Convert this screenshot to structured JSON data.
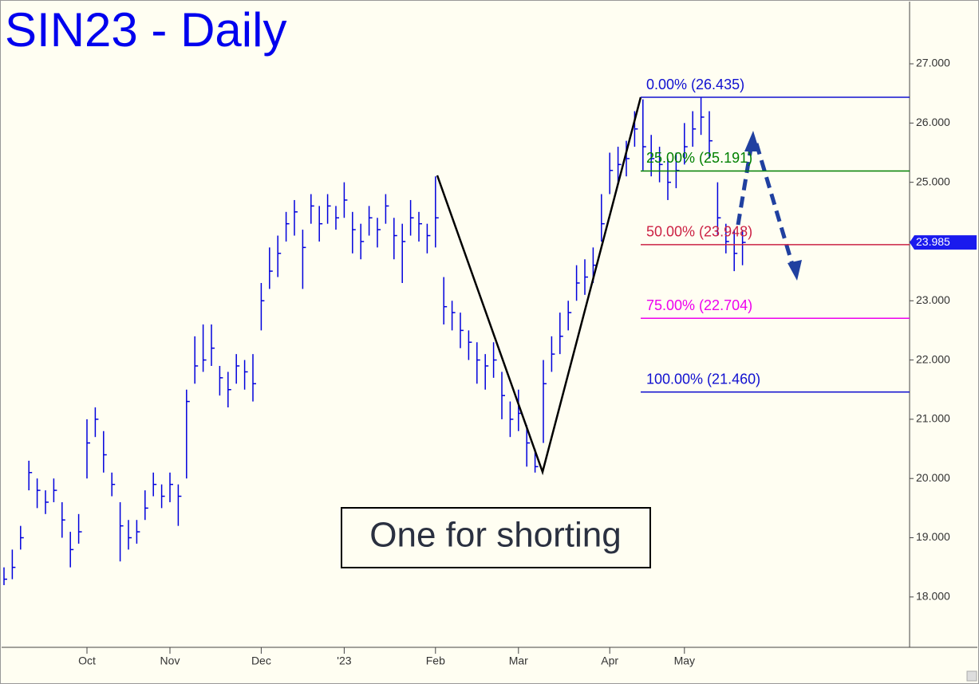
{
  "chart_data": {
    "type": "ohlc",
    "title": "SIN23 - Daily",
    "annotation": "One for shorting",
    "categories": [
      null,
      null,
      null,
      null,
      null,
      null,
      null,
      null,
      null,
      null,
      "Oct",
      null,
      null,
      null,
      null,
      null,
      null,
      null,
      null,
      null,
      "Nov",
      null,
      null,
      null,
      null,
      null,
      null,
      null,
      null,
      null,
      null,
      "Dec",
      null,
      null,
      null,
      null,
      null,
      null,
      null,
      null,
      null,
      "'23",
      null,
      null,
      null,
      null,
      null,
      null,
      null,
      null,
      null,
      null,
      "Feb",
      null,
      null,
      null,
      null,
      null,
      null,
      null,
      null,
      null,
      "Mar",
      null,
      null,
      null,
      null,
      null,
      null,
      null,
      null,
      null,
      null,
      "Apr",
      null,
      null,
      null,
      null,
      null,
      null,
      null,
      null,
      "May",
      null,
      null,
      null,
      null,
      null,
      null,
      null
    ],
    "high": [
      18.5,
      18.8,
      19.2,
      20.3,
      20.0,
      19.8,
      20.0,
      19.6,
      19.1,
      19.4,
      21.0,
      21.2,
      20.8,
      20.1,
      19.6,
      19.3,
      19.3,
      19.8,
      20.1,
      19.9,
      20.1,
      19.9,
      21.5,
      22.4,
      22.6,
      22.6,
      21.9,
      21.8,
      22.1,
      22.0,
      22.1,
      23.3,
      23.9,
      24.1,
      24.5,
      24.7,
      24.2,
      24.8,
      24.6,
      24.8,
      24.6,
      25.0,
      24.5,
      24.3,
      24.6,
      24.4,
      24.8,
      24.4,
      24.3,
      24.7,
      24.5,
      24.3,
      25.1,
      23.4,
      23.0,
      22.8,
      22.5,
      22.3,
      22.1,
      22.3,
      21.8,
      21.3,
      21.5,
      20.9,
      20.5,
      22.0,
      22.4,
      22.8,
      23.0,
      23.6,
      23.7,
      23.9,
      24.8,
      25.5,
      25.6,
      25.7,
      26.2,
      26.4,
      25.8,
      25.6,
      25.4,
      25.5,
      26.0,
      26.2,
      26.44,
      26.2,
      25.0,
      24.3,
      24.2,
      24.2
    ],
    "low": [
      18.2,
      18.3,
      18.8,
      19.8,
      19.5,
      19.4,
      19.6,
      19.0,
      18.5,
      18.9,
      20.0,
      20.7,
      20.1,
      19.7,
      18.6,
      18.8,
      18.9,
      19.3,
      19.7,
      19.5,
      19.6,
      19.2,
      20.0,
      21.6,
      21.8,
      21.9,
      21.4,
      21.2,
      21.6,
      21.5,
      21.3,
      22.5,
      23.2,
      23.4,
      24.0,
      24.1,
      23.2,
      24.3,
      24.0,
      24.3,
      24.2,
      24.4,
      23.8,
      23.7,
      24.1,
      23.9,
      24.3,
      23.7,
      23.3,
      24.1,
      24.0,
      23.8,
      23.9,
      22.6,
      22.5,
      22.2,
      22.0,
      21.6,
      21.5,
      21.7,
      21.0,
      20.7,
      20.8,
      20.2,
      20.1,
      20.6,
      21.8,
      22.1,
      22.5,
      23.0,
      23.1,
      23.3,
      24.0,
      24.8,
      25.0,
      25.1,
      25.6,
      25.2,
      25.1,
      25.0,
      24.7,
      24.9,
      25.3,
      25.6,
      25.8,
      25.4,
      24.1,
      23.8,
      23.5,
      23.6
    ],
    "close": [
      18.3,
      18.5,
      19.0,
      20.1,
      19.8,
      19.6,
      19.8,
      19.3,
      18.8,
      19.1,
      20.6,
      21.0,
      20.4,
      19.9,
      19.2,
      19.0,
      19.1,
      19.5,
      19.9,
      19.7,
      19.9,
      19.7,
      21.3,
      21.9,
      22.0,
      22.2,
      21.7,
      21.5,
      21.9,
      21.8,
      21.6,
      23.0,
      23.5,
      23.8,
      24.3,
      24.5,
      23.9,
      24.6,
      24.3,
      24.6,
      24.4,
      24.7,
      24.2,
      24.0,
      24.4,
      24.2,
      24.6,
      24.1,
      24.0,
      24.4,
      24.3,
      24.1,
      24.4,
      22.9,
      22.8,
      22.5,
      22.3,
      22.0,
      21.9,
      22.0,
      21.4,
      21.0,
      21.1,
      20.6,
      20.2,
      21.6,
      22.1,
      22.4,
      22.8,
      23.3,
      23.4,
      23.6,
      24.3,
      25.2,
      25.3,
      25.4,
      25.9,
      25.6,
      25.4,
      25.3,
      25.0,
      25.2,
      25.6,
      25.9,
      26.1,
      25.7,
      24.4,
      24.0,
      23.8,
      23.985
    ],
    "color": "#0000dd",
    "last": 23.985,
    "levels": [
      {
        "label": "0.00% (26.435)",
        "value": 26.435,
        "color": "#1010d0"
      },
      {
        "label": "25.00% (25.191)",
        "value": 25.191,
        "color": "#008000"
      },
      {
        "label": "50.00% (23.948)",
        "value": 23.948,
        "color": "#cc2244"
      },
      {
        "label": "75.00% (22.704)",
        "value": 22.704,
        "color": "#ee00ee"
      },
      {
        "label": "100.00% (21.460)",
        "value": 21.46,
        "color": "#1010d0"
      }
    ],
    "ylim": [
      17.15,
      28.05
    ],
    "yticks": [
      {
        "value": 18,
        "label": "18.000"
      },
      {
        "value": 19,
        "label": "19.000"
      },
      {
        "value": 20,
        "label": "20.000"
      },
      {
        "value": 21,
        "label": "21.000"
      },
      {
        "value": 22,
        "label": "22.000"
      },
      {
        "value": 23,
        "label": "23.000"
      },
      {
        "value": 24,
        "label": "24.000"
      },
      {
        "value": 25,
        "label": "25.000"
      },
      {
        "value": 26,
        "label": "26.000"
      },
      {
        "value": 27,
        "label": "27.000"
      }
    ]
  }
}
